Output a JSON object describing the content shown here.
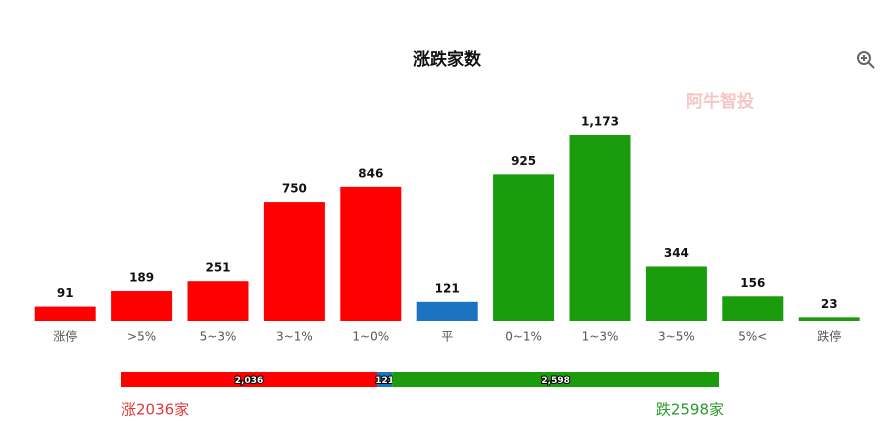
{
  "chart_data": {
    "type": "bar",
    "title": "涨跌家数",
    "watermark": "阿牛智投",
    "categories": [
      "涨停",
      ">5%",
      "5~3%",
      "3~1%",
      "1~0%",
      "平",
      "0~1%",
      "1~3%",
      "3~5%",
      "5%<",
      "跌停"
    ],
    "values": [
      91,
      189,
      251,
      750,
      846,
      121,
      925,
      1173,
      344,
      156,
      23
    ],
    "value_labels": [
      "91",
      "189",
      "251",
      "750",
      "846",
      "121",
      "925",
      "1,173",
      "344",
      "156",
      "23"
    ],
    "colors": [
      "#ff0000",
      "#ff0000",
      "#ff0000",
      "#ff0000",
      "#ff0000",
      "#1b73c2",
      "#1a9c0c",
      "#1a9c0c",
      "#1a9c0c",
      "#1a9c0c",
      "#1a9c0c"
    ]
  },
  "summary": {
    "segments": [
      {
        "value": 2036,
        "label": "2,036",
        "color": "#ff0000"
      },
      {
        "value": 121,
        "label": "121",
        "color": "#1b73c2"
      },
      {
        "value": 2598,
        "label": "2,598",
        "color": "#1a9c0c"
      }
    ],
    "up_text": "涨2036家",
    "down_text": "跌2598家"
  }
}
